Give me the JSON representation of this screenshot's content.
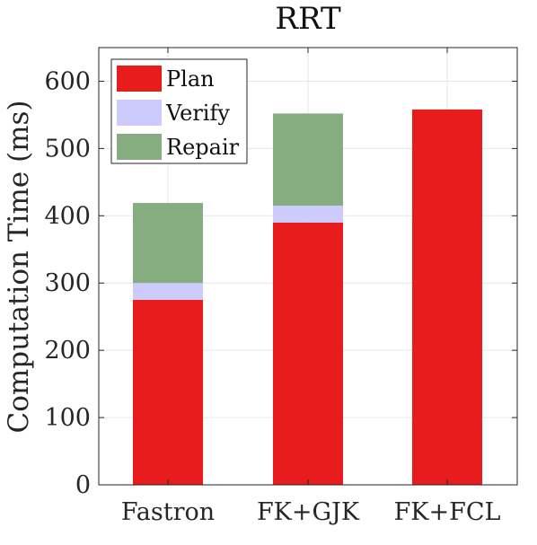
{
  "chart_data": {
    "type": "bar",
    "stacked": true,
    "title": "RRT",
    "xlabel": "",
    "ylabel": "Computation Time (ms)",
    "categories": [
      "Fastron",
      "FK+GJK",
      "FK+FCL"
    ],
    "series": [
      {
        "name": "Plan",
        "color": "#e81c1c",
        "values": [
          275,
          390,
          558
        ]
      },
      {
        "name": "Verify",
        "color": "#cccbfb",
        "values": [
          25,
          25,
          0
        ]
      },
      {
        "name": "Repair",
        "color": "#86ad80",
        "values": [
          119,
          137,
          0
        ]
      }
    ],
    "ylim": [
      0,
      650
    ],
    "yticks": [
      0,
      100,
      200,
      300,
      400,
      500,
      600
    ],
    "grid": true,
    "legend_position": "top-left"
  }
}
